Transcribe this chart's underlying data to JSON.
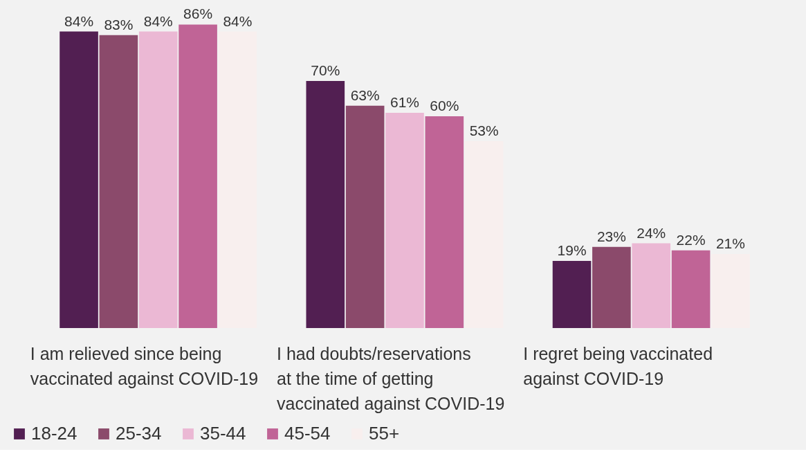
{
  "chart_data": {
    "type": "bar",
    "categories": [
      "I am relieved since being vaccinated against COVID-19",
      "I had doubts/reservations at the time of getting vaccinated against COVID-19",
      "I regret being vaccinated against COVID-19"
    ],
    "series": [
      {
        "name": "18-24",
        "color": "#521f52",
        "values": [
          84,
          70,
          19
        ],
        "value_labels": [
          "84%",
          "70%",
          "19%"
        ]
      },
      {
        "name": "25-34",
        "color": "#8b4a6b",
        "values": [
          83,
          63,
          23
        ],
        "value_labels": [
          "83%",
          "63%",
          "23%"
        ]
      },
      {
        "name": "35-44",
        "color": "#ebb8d4",
        "values": [
          84,
          61,
          24
        ],
        "value_labels": [
          "84%",
          "61%",
          "24%"
        ]
      },
      {
        "name": "45-54",
        "color": "#c06496",
        "values": [
          86,
          60,
          22
        ],
        "value_labels": [
          "86%",
          "60%",
          "22%"
        ]
      },
      {
        "name": "55+",
        "color": "#f8efee",
        "values": [
          84,
          53,
          21
        ],
        "value_labels": [
          "84%",
          "53%",
          "21%"
        ]
      }
    ],
    "legend": "bottom",
    "grid": false
  }
}
